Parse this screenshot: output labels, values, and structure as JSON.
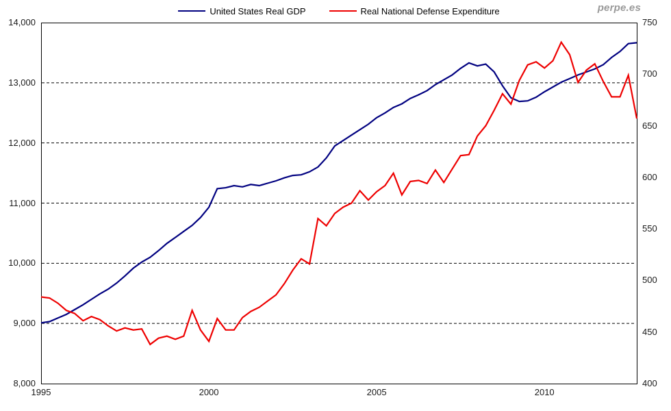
{
  "watermark": "perpe.es",
  "legend": [
    {
      "label": "United States Real GDP",
      "color": "#000080"
    },
    {
      "label": "Real National Defense Expenditure",
      "color": "#ee0000"
    }
  ],
  "axes": {
    "left": {
      "range": [
        8000,
        14000
      ],
      "grid_values": [
        9000,
        10000,
        11000,
        12000,
        13000
      ],
      "ticks": [
        {
          "value": 8000,
          "label": "8,000"
        },
        {
          "value": 9000,
          "label": "9,000"
        },
        {
          "value": 10000,
          "label": "10,000"
        },
        {
          "value": 11000,
          "label": "11,000"
        },
        {
          "value": 12000,
          "label": "12,000"
        },
        {
          "value": 13000,
          "label": "13,000"
        },
        {
          "value": 14000,
          "label": "14,000"
        }
      ]
    },
    "right": {
      "range": [
        400,
        750
      ],
      "ticks": [
        {
          "value": 400,
          "label": "400"
        },
        {
          "value": 450,
          "label": "450"
        },
        {
          "value": 500,
          "label": "500"
        },
        {
          "value": 550,
          "label": "550"
        },
        {
          "value": 600,
          "label": "600"
        },
        {
          "value": 650,
          "label": "650"
        },
        {
          "value": 700,
          "label": "700"
        },
        {
          "value": 750,
          "label": "750"
        }
      ]
    },
    "x": {
      "range": [
        1995,
        2012.75
      ],
      "ticks": [
        {
          "value": 1995,
          "label": "1995"
        },
        {
          "value": 2000,
          "label": "2000"
        },
        {
          "value": 2005,
          "label": "2005"
        },
        {
          "value": 2010,
          "label": "2010"
        }
      ]
    }
  },
  "chart_data": {
    "type": "line",
    "title": "",
    "grid": "horizontal-dashed",
    "legend_position": "top-center",
    "frequency": "quarterly",
    "x_quarters": [
      "1995Q1",
      "1995Q2",
      "1995Q3",
      "1995Q4",
      "1996Q1",
      "1996Q2",
      "1996Q3",
      "1996Q4",
      "1997Q1",
      "1997Q2",
      "1997Q3",
      "1997Q4",
      "1998Q1",
      "1998Q2",
      "1998Q3",
      "1998Q4",
      "1999Q1",
      "1999Q2",
      "1999Q3",
      "1999Q4",
      "2000Q1",
      "2000Q2",
      "2000Q3",
      "2000Q4",
      "2001Q1",
      "2001Q2",
      "2001Q3",
      "2001Q4",
      "2002Q1",
      "2002Q2",
      "2002Q3",
      "2002Q4",
      "2003Q1",
      "2003Q2",
      "2003Q3",
      "2003Q4",
      "2004Q1",
      "2004Q2",
      "2004Q3",
      "2004Q4",
      "2005Q1",
      "2005Q2",
      "2005Q3",
      "2005Q4",
      "2006Q1",
      "2006Q2",
      "2006Q3",
      "2006Q4",
      "2007Q1",
      "2007Q2",
      "2007Q3",
      "2007Q4",
      "2008Q1",
      "2008Q2",
      "2008Q3",
      "2008Q4",
      "2009Q1",
      "2009Q2",
      "2009Q3",
      "2009Q4",
      "2010Q1",
      "2010Q2",
      "2010Q3",
      "2010Q4",
      "2011Q1",
      "2011Q2",
      "2011Q3",
      "2011Q4",
      "2012Q1",
      "2012Q2",
      "2012Q3",
      "2012Q4"
    ],
    "series": [
      {
        "name": "United States Real GDP",
        "axis": "left",
        "color": "#000080",
        "ylim": [
          8000,
          14000
        ],
        "values": [
          9010,
          9030,
          9090,
          9150,
          9230,
          9310,
          9400,
          9490,
          9570,
          9670,
          9790,
          9920,
          10020,
          10100,
          10210,
          10330,
          10430,
          10530,
          10630,
          10760,
          10930,
          11240,
          11255,
          11290,
          11270,
          11310,
          11290,
          11330,
          11370,
          11420,
          11460,
          11470,
          11520,
          11600,
          11750,
          11950,
          12040,
          12130,
          12220,
          12310,
          12420,
          12500,
          12590,
          12650,
          12740,
          12800,
          12870,
          12970,
          13050,
          13130,
          13240,
          13330,
          13280,
          13310,
          13180,
          12950,
          12750,
          12690,
          12700,
          12760,
          12850,
          12930,
          13010,
          13070,
          13130,
          13180,
          13230,
          13300,
          13420,
          13520,
          13650,
          13665
        ]
      },
      {
        "name": "Real National Defense Expenditure",
        "axis": "right",
        "color": "#ee0000",
        "ylim": [
          400,
          750
        ],
        "values": [
          484,
          483,
          478,
          471,
          468,
          461,
          465,
          462,
          456,
          451,
          454,
          452,
          453,
          438,
          444,
          446,
          443,
          446,
          471,
          452,
          441,
          463,
          452,
          452,
          464,
          470,
          474,
          480,
          486,
          497,
          510,
          521,
          516,
          560,
          553,
          565,
          571,
          575,
          587,
          578,
          586,
          592,
          604,
          583,
          596,
          597,
          594,
          607,
          595,
          608,
          621,
          622,
          640,
          650,
          665,
          681,
          671,
          694,
          709,
          712,
          706,
          713,
          731,
          719,
          692,
          704,
          710,
          693,
          678,
          678,
          699,
          657
        ]
      }
    ]
  }
}
